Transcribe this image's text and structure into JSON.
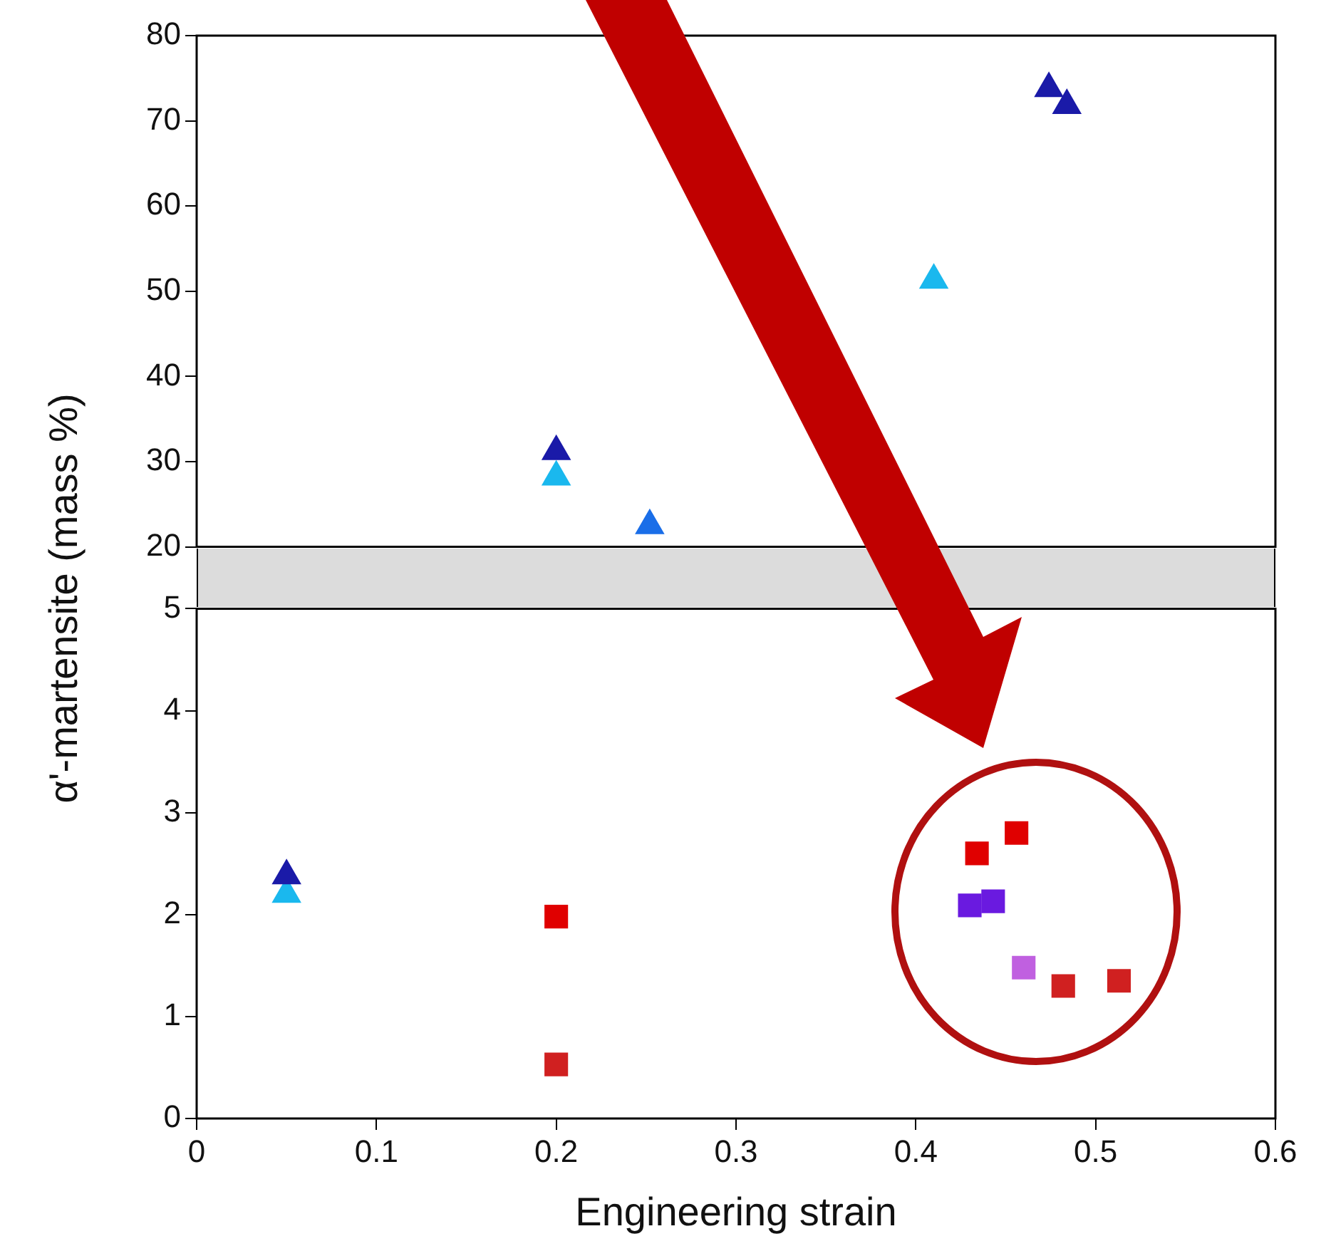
{
  "chart_data": [
    {
      "type": "scatter",
      "xlim": [
        0,
        0.6
      ],
      "xticks": [
        0,
        0.1,
        0.2,
        0.3,
        0.4,
        0.5,
        0.6
      ],
      "ylim": [
        20,
        80
      ],
      "yticks": [
        20,
        30,
        40,
        50,
        60,
        70,
        80
      ],
      "tick_labels": "y",
      "grid": false,
      "legend": false,
      "series": [
        {
          "color": "#1a1aa8",
          "marker": "triangle",
          "x": [
            0.2,
            0.474,
            0.484
          ],
          "values": [
            31.2,
            73.8,
            71.8
          ]
        },
        {
          "color": "#1ab8ee",
          "marker": "triangle",
          "x": [
            0.2,
            0.41
          ],
          "values": [
            28.2,
            51.3
          ]
        },
        {
          "color": "#1a6ee8",
          "marker": "triangle",
          "x": [
            0.252
          ],
          "values": [
            22.5
          ]
        }
      ]
    },
    {
      "type": "scatter",
      "xlabel": "Engineering strain",
      "ylabel": "α'-martensite (mass %)",
      "xlim": [
        0,
        0.6
      ],
      "xticks": [
        0,
        0.1,
        0.2,
        0.3,
        0.4,
        0.5,
        0.6
      ],
      "ylim": [
        0,
        5
      ],
      "yticks": [
        0,
        1,
        2,
        3,
        4,
        5
      ],
      "grid": false,
      "legend": false,
      "series": [
        {
          "color": "#1a1aa8",
          "marker": "triangle",
          "x": [
            0.05
          ],
          "values": [
            2.38
          ]
        },
        {
          "color": "#1ab8ee",
          "marker": "triangle",
          "x": [
            0.05
          ],
          "values": [
            2.2
          ]
        },
        {
          "color": "#e00000",
          "marker": "square",
          "x": [
            0.2,
            0.434,
            0.456
          ],
          "values": [
            1.98,
            2.6,
            2.8
          ]
        },
        {
          "color": "#6a1ae0",
          "marker": "square",
          "x": [
            0.43,
            0.443
          ],
          "values": [
            2.09,
            2.13
          ]
        },
        {
          "color": "#c060e0",
          "marker": "square",
          "x": [
            0.46
          ],
          "values": [
            1.48
          ]
        },
        {
          "color": "#d02020",
          "marker": "square",
          "x": [
            0.2,
            0.482,
            0.513
          ],
          "values": [
            0.53,
            1.3,
            1.35
          ]
        }
      ]
    }
  ]
}
